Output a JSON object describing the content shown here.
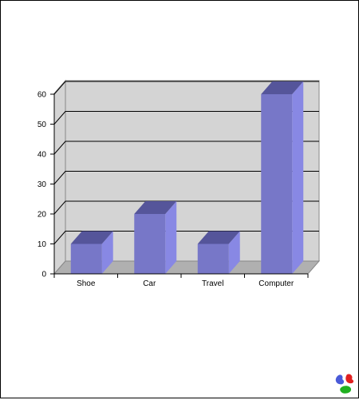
{
  "chart_data": {
    "type": "bar",
    "categories": [
      "Shoe",
      "Car",
      "Travel",
      "Computer"
    ],
    "values": [
      10,
      20,
      10,
      60
    ],
    "ylim": [
      0,
      60
    ],
    "yticks": [
      0,
      10,
      20,
      30,
      40,
      50,
      60
    ],
    "grid": true,
    "legend": "none",
    "colors": {
      "bar_front": "#7777c8",
      "bar_side": "#8888e4",
      "bar_top": "#55559a",
      "wall": "#d4d4d4",
      "floor": "#b0b0b0",
      "gridline": "#000000"
    }
  },
  "logo": {
    "icon": "colorful-blob-logo-icon",
    "colors": [
      "#4a5ad8",
      "#e02020",
      "#20b020"
    ]
  }
}
